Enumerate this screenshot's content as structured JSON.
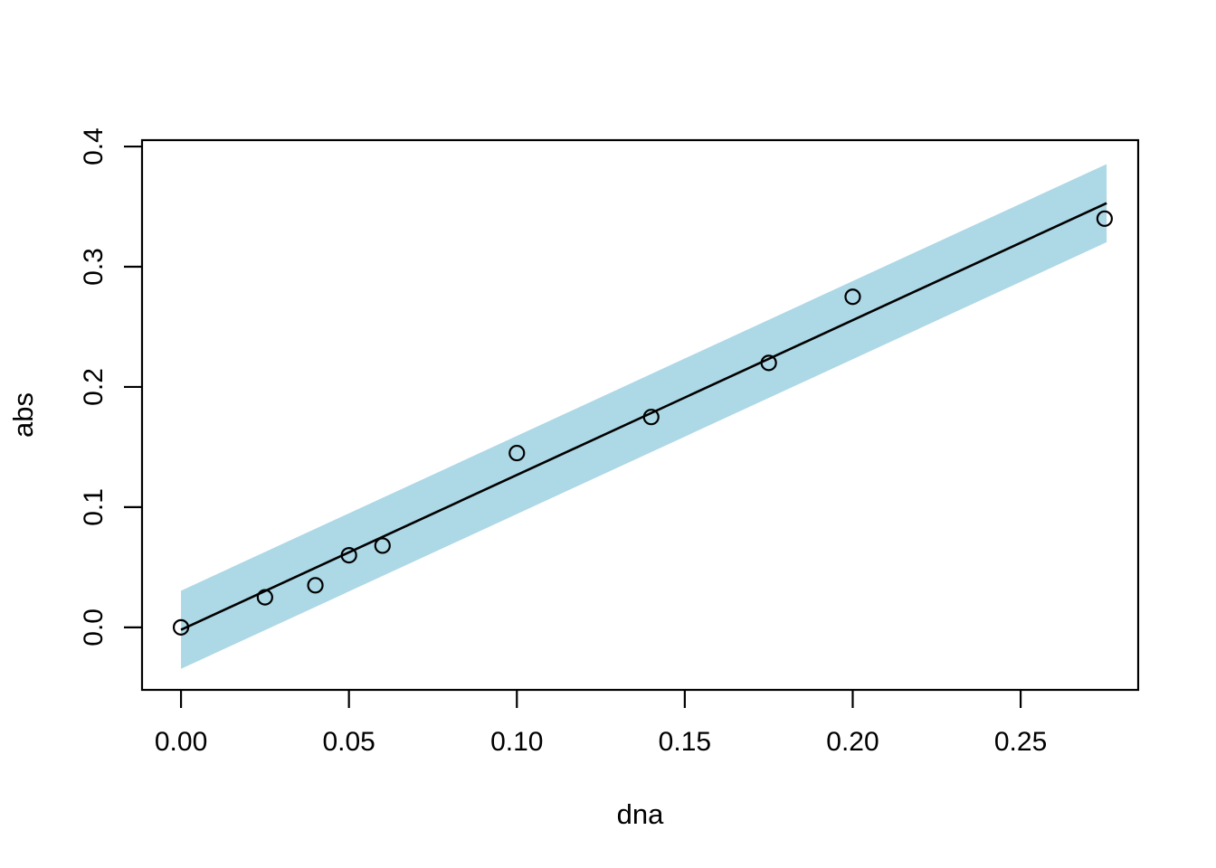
{
  "chart_data": {
    "type": "scatter",
    "title": "",
    "xlabel": "dna",
    "ylabel": "abs",
    "x_ticks": [
      0.0,
      0.05,
      0.1,
      0.15,
      0.2,
      0.25
    ],
    "x_tick_labels": [
      "0.00",
      "0.05",
      "0.10",
      "0.15",
      "0.20",
      "0.25"
    ],
    "y_ticks": [
      0.0,
      0.1,
      0.2,
      0.3,
      0.4
    ],
    "y_tick_labels": [
      "0.0",
      "0.1",
      "0.2",
      "0.3",
      "0.4"
    ],
    "xlim": [
      -0.0116,
      0.285
    ],
    "ylim": [
      -0.052,
      0.4053
    ],
    "grid": false,
    "legend": null,
    "marker": "open-circle",
    "points": {
      "x": [
        0.0,
        0.025,
        0.04,
        0.05,
        0.06,
        0.1,
        0.14,
        0.175,
        0.2,
        0.275
      ],
      "y": [
        0.0,
        0.025,
        0.035,
        0.06,
        0.068,
        0.145,
        0.175,
        0.22,
        0.275,
        0.34
      ]
    },
    "regression_line": {
      "x": [
        0.0,
        0.2756
      ],
      "y": [
        -0.002,
        0.3529
      ]
    },
    "confidence_band": {
      "x": [
        0.0,
        0.2756
      ],
      "center": [
        -0.002,
        0.3529
      ],
      "half_width": 0.0325,
      "color": "#ADD8E6"
    },
    "colors": {
      "points": "#000000",
      "line": "#000000",
      "band": "#ADD8E6",
      "axis": "#000000",
      "background": "#FFFFFF"
    }
  }
}
